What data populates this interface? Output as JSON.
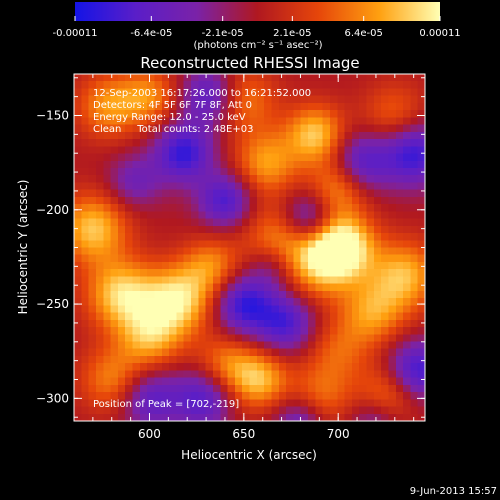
{
  "colorbar": {
    "tick_labels": [
      "-0.00011",
      "-6.4e-05",
      "-2.1e-05",
      "2.1e-05",
      "6.4e-05",
      "0.00011"
    ],
    "tick_values": [
      -0.00011,
      -6.4e-05,
      -2.1e-05,
      2.1e-05,
      6.4e-05,
      0.00011
    ],
    "range": [
      -0.00011,
      0.00011
    ],
    "unit_label": "(photons cm⁻² s⁻¹ asec⁻²)",
    "colors": [
      "#1414e6",
      "#5a1ec8",
      "#7a22a8",
      "#b01820",
      "#e6460a",
      "#ffa010",
      "#ffffb4"
    ]
  },
  "chart_data": {
    "type": "heatmap",
    "title": "Reconstructed RHESSI Image",
    "xlabel": "Heliocentric X (arcsec)",
    "ylabel": "Heliocentric Y (arcsec)",
    "xlim": [
      560,
      746
    ],
    "ylim": [
      -312,
      -128
    ],
    "x_ticks": [
      600,
      650,
      700
    ],
    "y_ticks": [
      -150,
      -200,
      -250,
      -300
    ],
    "x_tick_labels": [
      "600",
      "650",
      "700"
    ],
    "y_tick_labels": [
      "−150",
      "−200",
      "−250",
      "−300"
    ],
    "peak_position": [
      702,
      -219
    ],
    "annotations": [
      "12-Sep-2003 16:17:26.000 to 16:21:52.000",
      "Detectors: 4F 5F 6F 7F 8F, Att 0",
      "Energy Range: 12.0 - 25.0 keV",
      "Clean     Total counts: 2.48E+03"
    ],
    "peak_label": "Position of Peak = [702,-219]",
    "blobs": [
      {
        "x": 702,
        "y": -219,
        "v": 1.0,
        "s": 12
      },
      {
        "x": 690,
        "y": -228,
        "v": 0.7,
        "s": 14
      },
      {
        "x": 735,
        "y": -235,
        "v": 0.75,
        "s": 13
      },
      {
        "x": 718,
        "y": -255,
        "v": 0.6,
        "s": 12
      },
      {
        "x": 668,
        "y": -215,
        "v": 0.55,
        "s": 13
      },
      {
        "x": 615,
        "y": -248,
        "v": 0.9,
        "s": 13
      },
      {
        "x": 585,
        "y": -245,
        "v": 0.85,
        "s": 13
      },
      {
        "x": 570,
        "y": -210,
        "v": 0.8,
        "s": 13
      },
      {
        "x": 600,
        "y": -268,
        "v": 0.65,
        "s": 12
      },
      {
        "x": 580,
        "y": -290,
        "v": 0.55,
        "s": 12
      },
      {
        "x": 633,
        "y": -230,
        "v": 0.55,
        "s": 11
      },
      {
        "x": 578,
        "y": -145,
        "v": 0.6,
        "s": 12
      },
      {
        "x": 600,
        "y": -140,
        "v": 0.55,
        "s": 11
      },
      {
        "x": 650,
        "y": -142,
        "v": 0.55,
        "s": 12
      },
      {
        "x": 662,
        "y": -175,
        "v": 0.65,
        "s": 12
      },
      {
        "x": 688,
        "y": -160,
        "v": 0.8,
        "s": 11
      },
      {
        "x": 700,
        "y": -188,
        "v": 0.6,
        "s": 11
      },
      {
        "x": 730,
        "y": -150,
        "v": 0.45,
        "s": 12
      },
      {
        "x": 658,
        "y": -290,
        "v": 0.75,
        "s": 11
      },
      {
        "x": 640,
        "y": -282,
        "v": 0.5,
        "s": 11
      },
      {
        "x": 690,
        "y": -300,
        "v": 0.5,
        "s": 12
      },
      {
        "x": 725,
        "y": -300,
        "v": 0.65,
        "s": 11
      },
      {
        "x": 700,
        "y": -275,
        "v": 0.4,
        "s": 12
      },
      {
        "x": 618,
        "y": -170,
        "v": -0.85,
        "s": 11
      },
      {
        "x": 640,
        "y": -195,
        "v": -0.75,
        "s": 10
      },
      {
        "x": 632,
        "y": -140,
        "v": -0.7,
        "s": 11
      },
      {
        "x": 684,
        "y": -205,
        "v": -0.75,
        "s": 10
      },
      {
        "x": 740,
        "y": -170,
        "v": -0.85,
        "s": 12
      },
      {
        "x": 712,
        "y": -175,
        "v": -0.7,
        "s": 11
      },
      {
        "x": 650,
        "y": -250,
        "v": -0.85,
        "s": 11
      },
      {
        "x": 672,
        "y": -260,
        "v": -0.75,
        "s": 11
      },
      {
        "x": 628,
        "y": -300,
        "v": -0.7,
        "s": 11
      },
      {
        "x": 600,
        "y": -300,
        "v": -0.65,
        "s": 11
      },
      {
        "x": 742,
        "y": -285,
        "v": -0.8,
        "s": 11
      },
      {
        "x": 720,
        "y": -310,
        "v": -0.55,
        "s": 10
      },
      {
        "x": 680,
        "y": -312,
        "v": -0.6,
        "s": 10
      },
      {
        "x": 592,
        "y": -185,
        "v": -0.45,
        "s": 10
      },
      {
        "x": 665,
        "y": -230,
        "v": -0.4,
        "s": 9
      }
    ]
  },
  "footer": {
    "date": "9-Jun-2013 15:57"
  }
}
